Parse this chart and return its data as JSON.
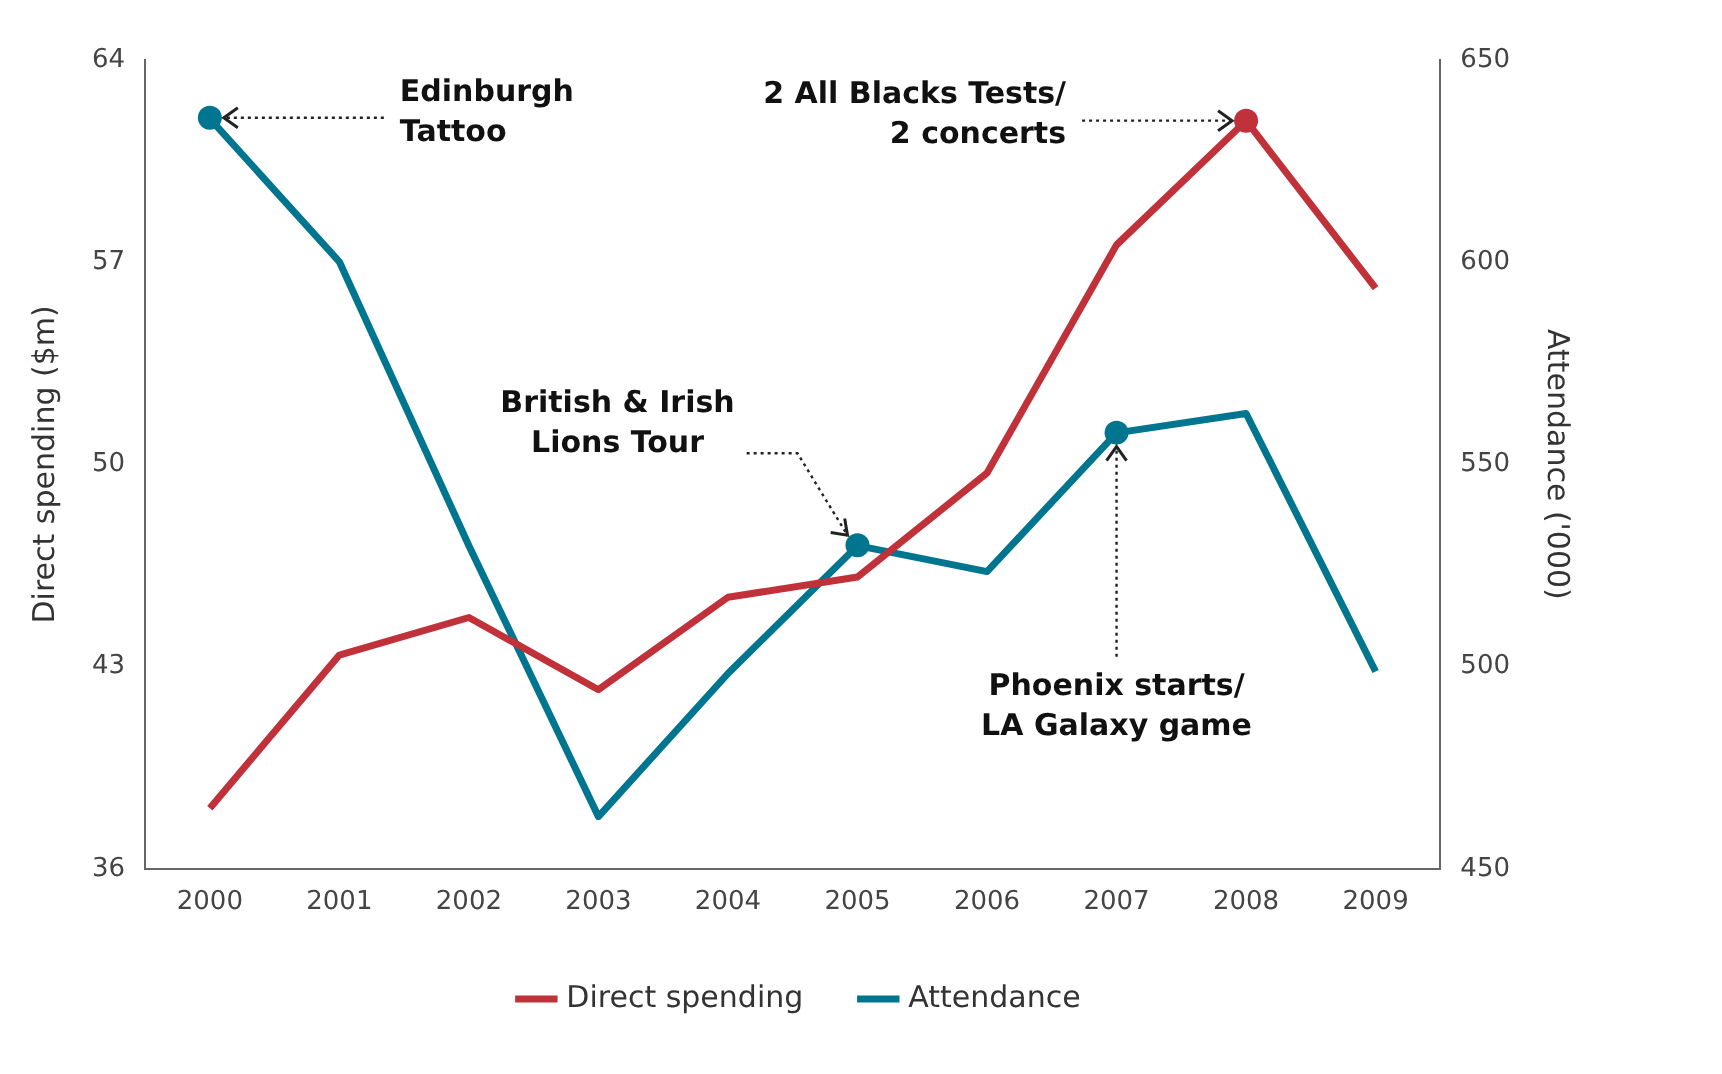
{
  "chart_data": {
    "type": "line",
    "ylabel": "Direct spending ($m)",
    "y2label": "Attendance ('000)",
    "categories": [
      "2000",
      "2001",
      "2002",
      "2003",
      "2004",
      "2005",
      "2006",
      "2007",
      "2008",
      "2009"
    ],
    "series": [
      {
        "name": "Direct spending",
        "color": "#c0313a",
        "values": [
          38.1,
          43.4,
          44.7,
          42.2,
          45.4,
          46.1,
          49.7,
          57.6,
          61.9,
          56.1
        ]
      },
      {
        "name": "Attendance",
        "color": "#00758f",
        "axis": "y2",
        "values": [
          635.5,
          600.1,
          529.9,
          462.9,
          498.3,
          529.9,
          523.5,
          557.8,
          562.6,
          498.8
        ]
      }
    ],
    "ylim": [
      36,
      64
    ],
    "yticks": [
      36,
      43,
      50,
      57,
      64
    ],
    "y2lim": [
      450,
      650
    ],
    "y2ticks": [
      450,
      500,
      550,
      600,
      650
    ],
    "grid": false,
    "legend": "bottom",
    "marker": "none",
    "line_style": "solid",
    "annotations": [
      {
        "text": "Edinburgh\nTattoo",
        "x": "2000",
        "y": 62.0
      },
      {
        "text": "2 All Blacks Tests/\n2 concerts",
        "x": "2008",
        "y": 61.9
      },
      {
        "text": "British & Irish\nLions Tour",
        "x": "2005",
        "y": 47.2
      },
      {
        "text": "Phoenix starts/\nLA Galaxy game",
        "x": "2007",
        "y": 51.1
      }
    ]
  }
}
